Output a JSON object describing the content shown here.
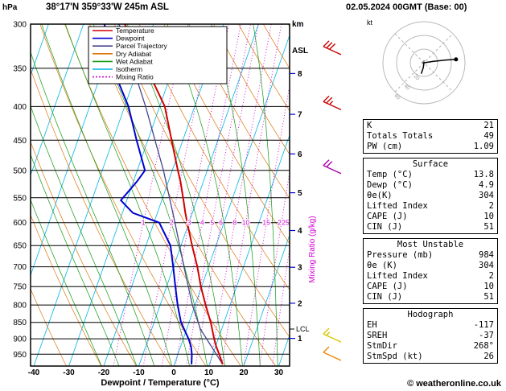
{
  "header": {
    "pressure_unit": "hPa",
    "station": "38°17'N 359°33'W 245m ASL",
    "alt_unit_line1": "km",
    "alt_unit_line2": "ASL",
    "datetime": "02.05.2024 00GMT (Base: 00)"
  },
  "axes": {
    "x_label": "Dewpoint / Temperature (°C)",
    "x_ticks": [
      -40,
      -30,
      -20,
      -10,
      0,
      10,
      20,
      30
    ],
    "pressure_ticks": [
      300,
      350,
      400,
      450,
      500,
      550,
      600,
      650,
      700,
      750,
      800,
      850,
      900,
      950
    ],
    "mixing_axis_label": "Mixing Ratio (g/kg)"
  },
  "legend": [
    {
      "label": "Temperature",
      "color": "#d20000",
      "dash": "none"
    },
    {
      "label": "Dewpoint",
      "color": "#0000d2",
      "dash": "none"
    },
    {
      "label": "Parcel Trajectory",
      "color": "#46468c",
      "dash": "none"
    },
    {
      "label": "Dry Adiabat",
      "color": "#dd7711",
      "dash": "none"
    },
    {
      "label": "Wet Adiabat",
      "color": "#119911",
      "dash": "none"
    },
    {
      "label": "Isotherm",
      "color": "#00b4e6",
      "dash": "none"
    },
    {
      "label": "Mixing Ratio",
      "color": "#d200d2",
      "dash": "2,2"
    }
  ],
  "chart_data": {
    "type": "line",
    "chart": "Skew-T log-P atmospheric sounding",
    "title": "38°17'N 359°33'W 245m ASL",
    "datetime": "02.05.2024 00GMT (Base: 00)",
    "xlabel": "Dewpoint / Temperature (°C)",
    "x_ticks_c": [
      -40,
      -30,
      -20,
      -10,
      0,
      10,
      20,
      30
    ],
    "pressure_axis_hpa": [
      300,
      350,
      400,
      450,
      500,
      550,
      600,
      650,
      700,
      750,
      800,
      850,
      900,
      950
    ],
    "pressure_range_hpa": [
      300,
      990
    ],
    "km_asl_ticks": [
      {
        "label": "8",
        "pressure": 356.5
      },
      {
        "label": "7",
        "pressure": 411.0
      },
      {
        "label": "6",
        "pressure": 472.0
      },
      {
        "label": "5",
        "pressure": 540.5
      },
      {
        "label": "4",
        "pressure": 616.6
      },
      {
        "label": "3",
        "pressure": 701.2
      },
      {
        "label": "2",
        "pressure": 795.0
      },
      {
        "label": "1",
        "pressure": 898.7
      }
    ],
    "lcl": {
      "label": "LCL",
      "pressure": 870
    },
    "mixing_ratio_lines_gkg": [
      1,
      2,
      3,
      4,
      5,
      6,
      8,
      10,
      15,
      20,
      25
    ],
    "mixing_ratio_label_pressure": 600,
    "isotherm_step_c": 10,
    "dry_adiabat_theta_c": {
      "min": -40,
      "max": 120,
      "step": 10
    },
    "wet_adiabat_thetaw_c": {
      "min": -20,
      "max": 35,
      "step": 5
    },
    "colors": {
      "temperature": "#d20000",
      "dewpoint": "#0000d2",
      "parcel": "#46468c",
      "dry_adiabat": "#dd7711",
      "wet_adiabat": "#119911",
      "isotherm": "#00b4e6",
      "mixing_ratio": "#d200d2",
      "grid": "#000000"
    },
    "series": [
      {
        "name": "Temperature",
        "color": "#d20000",
        "pressure": [
          984,
          950,
          925,
          900,
          850,
          800,
          750,
          700,
          650,
          600,
          580,
          555,
          520,
          500,
          450,
          400,
          350,
          300
        ],
        "values": [
          13.8,
          11.8,
          10.2,
          8.8,
          6.2,
          3.0,
          -0.2,
          -3.2,
          -6.8,
          -10.5,
          -12.0,
          -13.8,
          -16.5,
          -18.4,
          -23.2,
          -28.5,
          -37.5,
          -48.2
        ]
      },
      {
        "name": "Dewpoint",
        "color": "#0000d2",
        "pressure": [
          984,
          950,
          925,
          900,
          850,
          800,
          750,
          700,
          650,
          600,
          580,
          555,
          520,
          500,
          450,
          400,
          350,
          300
        ],
        "values": [
          4.9,
          4.0,
          3.0,
          1.5,
          -2.3,
          -5.0,
          -7.5,
          -10.1,
          -13.0,
          -18.5,
          -27.0,
          -31.7,
          -29.0,
          -27.8,
          -33.2,
          -38.9,
          -47.2,
          -54.0
        ]
      },
      {
        "name": "Parcel Trajectory",
        "color": "#46468c",
        "pressure": [
          984,
          870,
          800,
          700,
          600,
          500,
          400,
          300
        ],
        "values": [
          13.8,
          3.9,
          -0.8,
          -7.0,
          -14.0,
          -22.5,
          -34.0,
          -49.8
        ]
      }
    ],
    "wind_barbs": [
      {
        "pressure": 330,
        "speed_kt": 30,
        "color": "#cc0000"
      },
      {
        "pressure": 400,
        "speed_kt": 25,
        "color": "#cc0000"
      },
      {
        "pressure": 500,
        "speed_kt": 20,
        "color": "#aa00aa"
      },
      {
        "pressure": 900,
        "speed_kt": 15,
        "color": "#d8c800"
      },
      {
        "pressure": 960,
        "speed_kt": 10,
        "color": "#ee8800"
      }
    ],
    "hodograph": {
      "unit": "kt",
      "rings_kt": [
        20,
        40,
        60
      ],
      "trace_uv_kt": [
        [
          -4,
          -16
        ],
        [
          -1,
          -7
        ],
        [
          0,
          0
        ],
        [
          14,
          2
        ],
        [
          32,
          4
        ],
        [
          47,
          5
        ]
      ]
    }
  },
  "panels": {
    "indices": {
      "rows": [
        [
          "K",
          "21"
        ],
        [
          "Totals Totals",
          "49"
        ],
        [
          "PW (cm)",
          "1.09"
        ]
      ]
    },
    "surface": {
      "title": "Surface",
      "rows": [
        [
          "Temp (°C)",
          "13.8"
        ],
        [
          "Dewp (°C)",
          "4.9"
        ],
        [
          "θe(K)",
          "304"
        ],
        [
          "Lifted Index",
          "2"
        ],
        [
          "CAPE (J)",
          "10"
        ],
        [
          "CIN (J)",
          "51"
        ]
      ]
    },
    "most_unstable": {
      "title": "Most Unstable",
      "rows": [
        [
          "Pressure (mb)",
          "984"
        ],
        [
          "θe (K)",
          "304"
        ],
        [
          "Lifted Index",
          "2"
        ],
        [
          "CAPE (J)",
          "10"
        ],
        [
          "CIN (J)",
          "51"
        ]
      ]
    },
    "hodograph_panel": {
      "title": "Hodograph",
      "rows": [
        [
          "EH",
          "-117"
        ],
        [
          "SREH",
          "-37"
        ],
        [
          "StmDir",
          "268°"
        ],
        [
          "StmSpd (kt)",
          "26"
        ]
      ]
    }
  },
  "footer": {
    "credit": "© weatheronline.co.uk"
  }
}
